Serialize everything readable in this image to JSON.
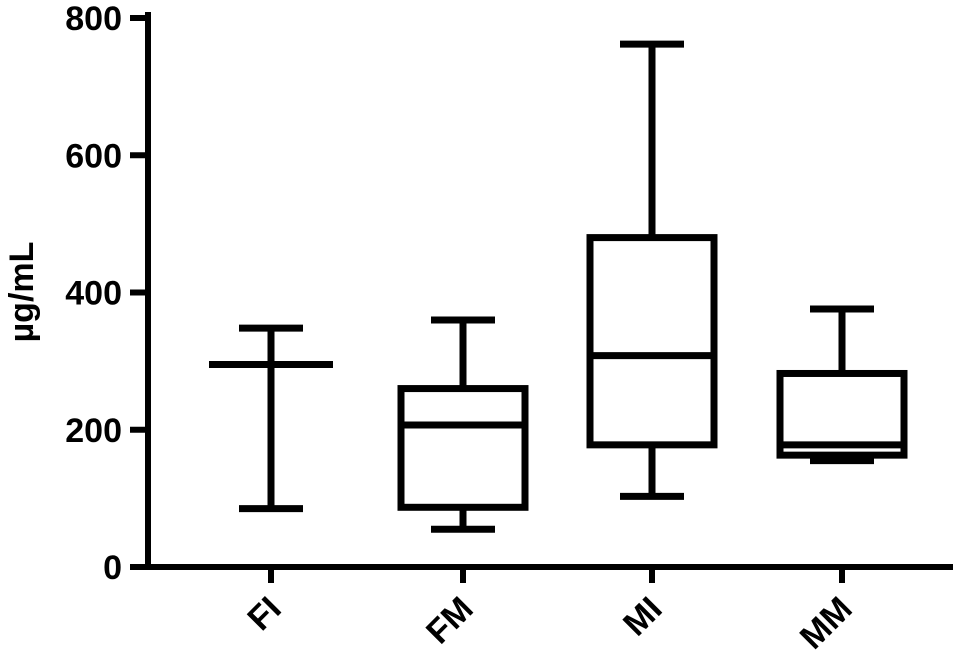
{
  "chart_data": {
    "type": "box",
    "ylabel": "µg/mL",
    "xlabel": "",
    "ylim": [
      0,
      800
    ],
    "yticks": [
      0,
      200,
      400,
      600,
      800
    ],
    "grid": false,
    "categories": [
      "FI",
      "FM",
      "MI",
      "MM"
    ],
    "boxes": [
      {
        "category": "FI",
        "min": 85,
        "q1": 295,
        "median": 295,
        "q3": 295,
        "max": 348
      },
      {
        "category": "FM",
        "min": 55,
        "q1": 87,
        "median": 207,
        "q3": 260,
        "max": 360
      },
      {
        "category": "MI",
        "min": 103,
        "q1": 178,
        "median": 308,
        "q3": 480,
        "max": 762
      },
      {
        "category": "MM",
        "min": 155,
        "q1": 163,
        "median": 178,
        "q3": 282,
        "max": 376
      }
    ]
  }
}
